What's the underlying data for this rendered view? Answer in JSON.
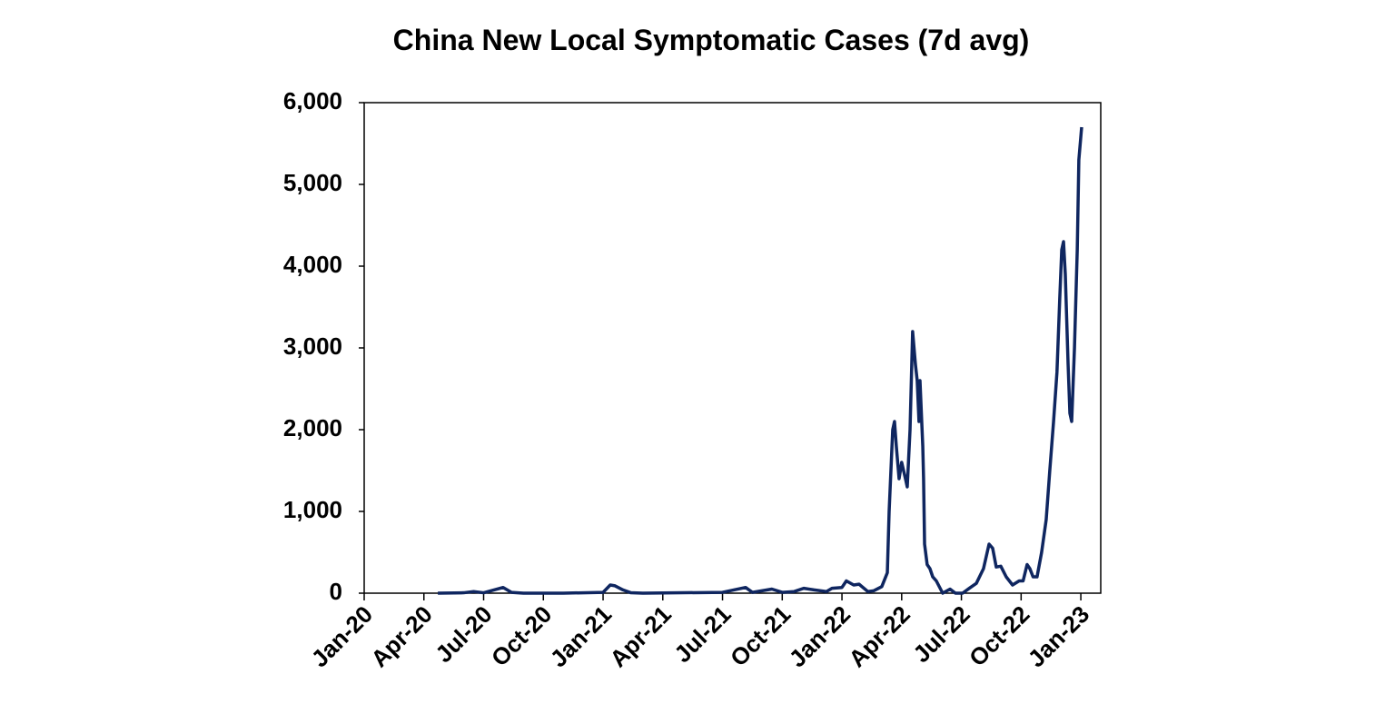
{
  "chart_data": {
    "type": "line",
    "title": "China New Local Symptomatic Cases (7d avg)",
    "x": [
      3.7,
      5.0,
      5.5,
      6.0,
      6.98,
      7.4,
      8.0,
      10.0,
      12.0,
      12.36,
      12.6,
      13.0,
      13.4,
      14.0,
      16.0,
      18.0,
      19.16,
      19.5,
      20.48,
      21.0,
      21.6,
      22.08,
      22.6,
      23.22,
      23.5,
      24.0,
      24.22,
      24.59,
      24.86,
      25.3,
      25.6,
      26.0,
      26.28,
      26.37,
      26.46,
      26.55,
      26.64,
      26.73,
      26.87,
      27.0,
      27.19,
      27.28,
      27.42,
      27.55,
      27.69,
      27.78,
      27.87,
      27.92,
      28.06,
      28.1,
      28.15,
      28.28,
      28.42,
      28.56,
      28.74,
      29.06,
      29.43,
      29.7,
      30.06,
      30.4,
      30.75,
      31.11,
      31.39,
      31.57,
      31.75,
      31.98,
      32.25,
      32.57,
      32.9,
      33.1,
      33.3,
      33.44,
      33.6,
      33.8,
      34.03,
      34.26,
      34.44,
      34.63,
      34.8,
      34.94,
      35.04,
      35.13,
      35.22,
      35.36,
      35.45,
      35.54,
      35.68,
      35.82,
      35.9,
      36.04
    ],
    "series": [
      {
        "color": "#0f2660",
        "values": [
          0,
          5,
          20,
          5,
          70,
          10,
          0,
          0,
          10,
          100,
          90,
          40,
          5,
          0,
          5,
          10,
          70,
          10,
          50,
          10,
          20,
          60,
          40,
          20,
          60,
          70,
          150,
          100,
          110,
          20,
          30,
          80,
          250,
          1000,
          1500,
          2000,
          2100,
          1800,
          1400,
          1600,
          1400,
          1300,
          2000,
          3200,
          2800,
          2600,
          2100,
          2600,
          1800,
          1400,
          600,
          350,
          300,
          200,
          150,
          0,
          50,
          0,
          0,
          60,
          120,
          300,
          600,
          550,
          320,
          330,
          200,
          100,
          150,
          150,
          350,
          300,
          200,
          200,
          500,
          900,
          1500,
          2100,
          2700,
          3600,
          4200,
          4300,
          3900,
          2800,
          2200,
          2100,
          3000,
          4200,
          5300,
          5700
        ]
      }
    ],
    "xlim": [
      0,
      37
    ],
    "xticks": [
      {
        "value": 0,
        "label": "Jan-20"
      },
      {
        "value": 3,
        "label": "Apr-20"
      },
      {
        "value": 6,
        "label": "Jul-20"
      },
      {
        "value": 9,
        "label": "Oct-20"
      },
      {
        "value": 12,
        "label": "Jan-21"
      },
      {
        "value": 15,
        "label": "Apr-21"
      },
      {
        "value": 18,
        "label": "Jul-21"
      },
      {
        "value": 21,
        "label": "Oct-21"
      },
      {
        "value": 24,
        "label": "Jan-22"
      },
      {
        "value": 27,
        "label": "Apr-22"
      },
      {
        "value": 30,
        "label": "Jul-22"
      },
      {
        "value": 33,
        "label": "Oct-22"
      },
      {
        "value": 36,
        "label": "Jan-23"
      }
    ],
    "ylim": [
      0,
      6000
    ],
    "yticks": [
      0,
      {
        "value": 1000,
        "label": "1,000"
      },
      {
        "value": 2000,
        "label": "2,000"
      },
      {
        "value": 3000,
        "label": "3,000"
      },
      {
        "value": 4000,
        "label": "4,000"
      },
      {
        "value": 5000,
        "label": "5,000"
      },
      {
        "value": 6000,
        "label": "6,000"
      }
    ]
  }
}
